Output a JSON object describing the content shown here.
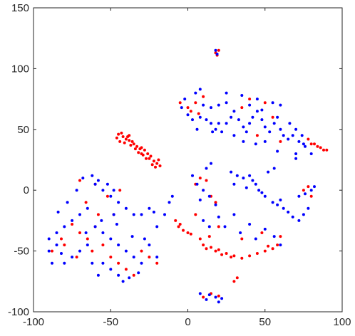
{
  "chart_data": {
    "type": "scatter",
    "title": "",
    "xlabel": "",
    "ylabel": "",
    "xlim": [
      -100,
      100
    ],
    "ylim": [
      -100,
      150
    ],
    "xticks": [
      -100,
      -50,
      0,
      50,
      100
    ],
    "yticks": [
      -100,
      -50,
      0,
      50,
      100,
      150
    ],
    "grid": false,
    "box": true,
    "colors": {
      "red": "#ff0000",
      "blue": "#0000ff",
      "axis": "#262626"
    },
    "series": [
      {
        "color": "#ff0000",
        "values": [
          [
            -45,
            46
          ],
          [
            -42,
            44
          ],
          [
            -40,
            42
          ],
          [
            -38,
            41
          ],
          [
            -35,
            38
          ],
          [
            -33,
            36
          ],
          [
            -30,
            35
          ],
          [
            -28,
            33
          ],
          [
            -26,
            30
          ],
          [
            -24,
            28
          ],
          [
            -46,
            43
          ],
          [
            -41,
            39
          ],
          [
            -37,
            37
          ],
          [
            -34,
            34
          ],
          [
            -32,
            31
          ],
          [
            -29,
            29
          ],
          [
            -27,
            26
          ],
          [
            -44,
            40
          ],
          [
            -39,
            44
          ],
          [
            -36,
            40
          ],
          [
            -30,
            30
          ],
          [
            -25,
            26
          ],
          [
            -31,
            34
          ],
          [
            -43,
            47
          ],
          [
            -38,
            45
          ],
          [
            -22,
            24
          ],
          [
            -20,
            22
          ],
          [
            -18,
            20
          ],
          [
            -21,
            19
          ],
          [
            -19,
            25
          ],
          [
            -23,
            21
          ],
          [
            10,
            77
          ],
          [
            5,
            72
          ],
          [
            0,
            68
          ],
          [
            -5,
            72
          ],
          [
            7,
            63
          ],
          [
            2,
            65
          ],
          [
            40,
            75
          ],
          [
            50,
            72
          ],
          [
            35,
            68
          ],
          [
            55,
            60
          ],
          [
            45,
            45
          ],
          [
            60,
            40
          ],
          [
            78,
            42
          ],
          [
            82,
            38
          ],
          [
            86,
            35
          ],
          [
            88,
            33
          ],
          [
            84,
            36
          ],
          [
            90,
            33
          ],
          [
            80,
            38
          ],
          [
            18,
            113
          ],
          [
            20,
            115
          ],
          [
            19,
            111
          ],
          [
            -8,
            -25
          ],
          [
            -5,
            -28
          ],
          [
            -3,
            -33
          ],
          [
            0,
            -35
          ],
          [
            2,
            -36
          ],
          [
            -6,
            -30
          ],
          [
            10,
            -45
          ],
          [
            15,
            -47
          ],
          [
            20,
            -49
          ],
          [
            25,
            -52
          ],
          [
            30,
            -54
          ],
          [
            35,
            -56
          ],
          [
            40,
            -54
          ],
          [
            45,
            -52
          ],
          [
            50,
            -50
          ],
          [
            55,
            -48
          ],
          [
            58,
            -45
          ],
          [
            52,
            -46
          ],
          [
            18,
            -50
          ],
          [
            22,
            -53
          ],
          [
            28,
            -55
          ],
          [
            12,
            -48
          ],
          [
            8,
            -40
          ],
          [
            14,
            -38
          ],
          [
            5,
            -20
          ],
          [
            20,
            -30
          ],
          [
            35,
            -40
          ],
          [
            48,
            -35
          ],
          [
            60,
            -38
          ],
          [
            30,
            -75
          ],
          [
            32,
            -72
          ],
          [
            -60,
            -30
          ],
          [
            -65,
            -40
          ],
          [
            -55,
            -45
          ],
          [
            -70,
            -35
          ],
          [
            -50,
            -55
          ],
          [
            -45,
            -60
          ],
          [
            -40,
            -65
          ],
          [
            -35,
            -70
          ],
          [
            -62,
            -50
          ],
          [
            -58,
            -20
          ],
          [
            -75,
            -28
          ],
          [
            -48,
            -20
          ],
          [
            -30,
            -50
          ],
          [
            -25,
            -55
          ],
          [
            -20,
            -60
          ],
          [
            -72,
            -55
          ],
          [
            -80,
            -45
          ],
          [
            -66,
            -10
          ],
          [
            -52,
            -5
          ],
          [
            -44,
            0
          ],
          [
            -60,
            5
          ],
          [
            -70,
            8
          ],
          [
            -88,
            -50
          ],
          [
            -82,
            -40
          ],
          [
            10,
            -88
          ],
          [
            15,
            -85
          ],
          [
            20,
            -87
          ],
          [
            75,
            0
          ],
          [
            78,
            3
          ],
          [
            80,
            -5
          ],
          [
            8,
            10
          ],
          [
            12,
            8
          ],
          [
            15,
            -5
          ],
          [
            18,
            -10
          ],
          [
            5,
            5
          ]
        ]
      },
      {
        "color": "#0000ff",
        "values": [
          [
            8,
            60
          ],
          [
            12,
            58
          ],
          [
            15,
            55
          ],
          [
            18,
            50
          ],
          [
            22,
            48
          ],
          [
            25,
            55
          ],
          [
            28,
            60
          ],
          [
            30,
            65
          ],
          [
            33,
            58
          ],
          [
            36,
            52
          ],
          [
            38,
            48
          ],
          [
            40,
            55
          ],
          [
            42,
            60
          ],
          [
            45,
            65
          ],
          [
            48,
            58
          ],
          [
            50,
            52
          ],
          [
            53,
            48
          ],
          [
            56,
            55
          ],
          [
            58,
            60
          ],
          [
            60,
            50
          ],
          [
            62,
            45
          ],
          [
            65,
            42
          ],
          [
            68,
            45
          ],
          [
            70,
            50
          ],
          [
            72,
            40
          ],
          [
            75,
            38
          ],
          [
            60,
            70
          ],
          [
            55,
            72
          ],
          [
            45,
            75
          ],
          [
            35,
            78
          ],
          [
            25,
            72
          ],
          [
            20,
            70
          ],
          [
            15,
            68
          ],
          [
            10,
            70
          ],
          [
            5,
            80
          ],
          [
            8,
            83
          ],
          [
            25,
            80
          ],
          [
            40,
            70
          ],
          [
            50,
            40
          ],
          [
            30,
            45
          ],
          [
            20,
            55
          ],
          [
            48,
            66
          ],
          [
            66,
            55
          ],
          [
            74,
            45
          ],
          [
            70,
            30
          ],
          [
            58,
            32
          ],
          [
            44,
            38
          ],
          [
            36,
            40
          ],
          [
            16,
            48
          ],
          [
            6,
            50
          ],
          [
            -2,
            75
          ],
          [
            0,
            62
          ],
          [
            -4,
            68
          ],
          [
            3,
            58
          ],
          [
            80,
            30
          ],
          [
            76,
            36
          ],
          [
            70,
            26
          ],
          [
            18,
            115
          ],
          [
            19,
            112
          ],
          [
            -60,
            5
          ],
          [
            -55,
            0
          ],
          [
            -50,
            -5
          ],
          [
            -45,
            -10
          ],
          [
            -40,
            -15
          ],
          [
            -35,
            -20
          ],
          [
            -65,
            -15
          ],
          [
            -70,
            -20
          ],
          [
            -75,
            -25
          ],
          [
            -80,
            -30
          ],
          [
            -85,
            -35
          ],
          [
            -60,
            -30
          ],
          [
            -55,
            -35
          ],
          [
            -50,
            -40
          ],
          [
            -45,
            -45
          ],
          [
            -40,
            -50
          ],
          [
            -35,
            -55
          ],
          [
            -65,
            -45
          ],
          [
            -70,
            -50
          ],
          [
            -75,
            -55
          ],
          [
            -80,
            -60
          ],
          [
            -85,
            -45
          ],
          [
            -90,
            -50
          ],
          [
            -55,
            -60
          ],
          [
            -50,
            -65
          ],
          [
            -45,
            -70
          ],
          [
            -42,
            -75
          ],
          [
            -38,
            -72
          ],
          [
            -30,
            -60
          ],
          [
            -25,
            -45
          ],
          [
            -20,
            -30
          ],
          [
            -15,
            -20
          ],
          [
            -25,
            -15
          ],
          [
            -68,
            10
          ],
          [
            -62,
            12
          ],
          [
            -58,
            8
          ],
          [
            -52,
            5
          ],
          [
            -48,
            0
          ],
          [
            -72,
            0
          ],
          [
            -78,
            -10
          ],
          [
            -84,
            -18
          ],
          [
            -66,
            -35
          ],
          [
            -56,
            -25
          ],
          [
            -46,
            -28
          ],
          [
            -36,
            -38
          ],
          [
            -28,
            -40
          ],
          [
            -20,
            -55
          ],
          [
            -32,
            -68
          ],
          [
            -88,
            -60
          ],
          [
            -82,
            -52
          ],
          [
            -62,
            -60
          ],
          [
            -58,
            -70
          ],
          [
            -48,
            -20
          ],
          [
            -90,
            -40
          ],
          [
            -30,
            -20
          ],
          [
            -22,
            -18
          ],
          [
            -12,
            -10
          ],
          [
            -10,
            -5
          ],
          [
            3,
            12
          ],
          [
            6,
            5
          ],
          [
            10,
            0
          ],
          [
            14,
            -5
          ],
          [
            18,
            -12
          ],
          [
            8,
            -8
          ],
          [
            12,
            18
          ],
          [
            15,
            22
          ],
          [
            28,
            15
          ],
          [
            32,
            12
          ],
          [
            36,
            10
          ],
          [
            40,
            12
          ],
          [
            42,
            8
          ],
          [
            44,
            5
          ],
          [
            46,
            0
          ],
          [
            48,
            -2
          ],
          [
            50,
            -5
          ],
          [
            55,
            -10
          ],
          [
            58,
            -12
          ],
          [
            62,
            -15
          ],
          [
            65,
            -18
          ],
          [
            68,
            -22
          ],
          [
            72,
            -25
          ],
          [
            75,
            -20
          ],
          [
            78,
            -15
          ],
          [
            30,
            5
          ],
          [
            38,
            2
          ],
          [
            52,
            15
          ],
          [
            56,
            18
          ],
          [
            60,
            -8
          ],
          [
            72,
            -5
          ],
          [
            76,
            -3
          ],
          [
            80,
            0
          ],
          [
            82,
            3
          ],
          [
            10,
            -25
          ],
          [
            20,
            -22
          ],
          [
            30,
            -20
          ],
          [
            40,
            -28
          ],
          [
            50,
            -32
          ],
          [
            56,
            -38
          ],
          [
            60,
            -45
          ],
          [
            44,
            -40
          ],
          [
            34,
            -35
          ],
          [
            24,
            -30
          ],
          [
            14,
            -30
          ],
          [
            8,
            -85
          ],
          [
            12,
            -90
          ],
          [
            18,
            -88
          ],
          [
            22,
            -89
          ],
          [
            14,
            -86
          ],
          [
            20,
            -92
          ]
        ]
      }
    ]
  }
}
